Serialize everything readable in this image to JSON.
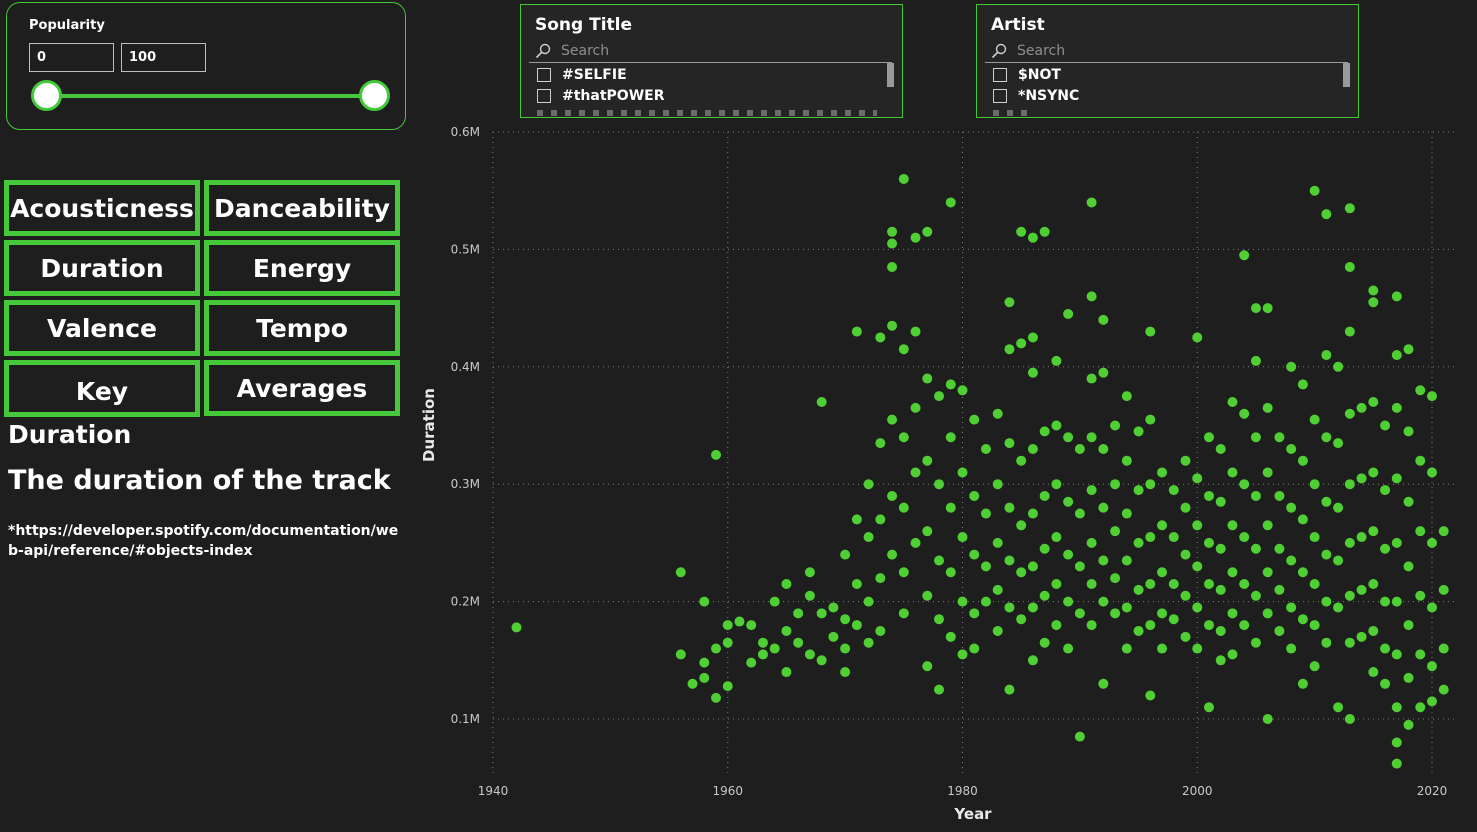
{
  "popularity": {
    "title": "Popularity",
    "min_value": "0",
    "max_value": "100"
  },
  "song_title_slicer": {
    "title": "Song Title",
    "search_placeholder": "Search",
    "items": [
      "#SELFIE",
      "#thatPOWER"
    ]
  },
  "artist_slicer": {
    "title": "Artist",
    "search_placeholder": "Search",
    "items": [
      "$NOT",
      "*NSYNC"
    ]
  },
  "metric_buttons": [
    "Acousticness",
    "Danceability",
    "Duration",
    "Energy",
    "Valence",
    "Tempo",
    "Key",
    "Averages"
  ],
  "description": {
    "title": "Duration",
    "text": "The duration of the track",
    "source": "*https://developer.spotify.com/documentation/web-api/reference/#objects-index"
  },
  "colors": {
    "accent": "#45c83a",
    "point": "#4fcf33",
    "background": "#1e1e1e"
  },
  "icons": {
    "search": "search-icon",
    "checkbox": "checkbox-icon"
  },
  "chart_data": {
    "type": "scatter",
    "xlabel": "Year",
    "ylabel": "Duration",
    "xlim": [
      1940,
      2021
    ],
    "ylim": [
      50000,
      600000
    ],
    "x_ticks": [
      1940,
      1960,
      1980,
      2000,
      2020
    ],
    "x_tick_labels": [
      "1940",
      "1960",
      "1980",
      "2000",
      "2020"
    ],
    "y_ticks": [
      100000,
      200000,
      300000,
      400000,
      500000,
      600000
    ],
    "y_tick_labels": [
      "0.1M",
      "0.2M",
      "0.3M",
      "0.4M",
      "0.5M",
      "0.6M"
    ],
    "grid": true,
    "points": [
      [
        1942,
        178000
      ],
      [
        1956,
        225000
      ],
      [
        1956,
        155000
      ],
      [
        1957,
        130000
      ],
      [
        1958,
        200000
      ],
      [
        1958,
        148000
      ],
      [
        1958,
        135000
      ],
      [
        1959,
        325000
      ],
      [
        1959,
        118000
      ],
      [
        1959,
        160000
      ],
      [
        1960,
        180000
      ],
      [
        1960,
        165000
      ],
      [
        1960,
        128000
      ],
      [
        1961,
        183000
      ],
      [
        1962,
        180000
      ],
      [
        1962,
        148000
      ],
      [
        1963,
        155000
      ],
      [
        1963,
        165000
      ],
      [
        1964,
        200000
      ],
      [
        1964,
        160000
      ],
      [
        1965,
        215000
      ],
      [
        1965,
        175000
      ],
      [
        1965,
        140000
      ],
      [
        1966,
        190000
      ],
      [
        1966,
        165000
      ],
      [
        1967,
        205000
      ],
      [
        1967,
        155000
      ],
      [
        1967,
        225000
      ],
      [
        1968,
        370000
      ],
      [
        1968,
        190000
      ],
      [
        1968,
        150000
      ],
      [
        1969,
        195000
      ],
      [
        1969,
        170000
      ],
      [
        1970,
        240000
      ],
      [
        1970,
        185000
      ],
      [
        1970,
        160000
      ],
      [
        1970,
        140000
      ],
      [
        1971,
        430000
      ],
      [
        1971,
        270000
      ],
      [
        1971,
        215000
      ],
      [
        1971,
        180000
      ],
      [
        1972,
        300000
      ],
      [
        1972,
        255000
      ],
      [
        1972,
        200000
      ],
      [
        1972,
        165000
      ],
      [
        1973,
        425000
      ],
      [
        1973,
        335000
      ],
      [
        1973,
        270000
      ],
      [
        1973,
        220000
      ],
      [
        1973,
        175000
      ],
      [
        1974,
        515000
      ],
      [
        1974,
        505000
      ],
      [
        1974,
        485000
      ],
      [
        1974,
        435000
      ],
      [
        1974,
        355000
      ],
      [
        1974,
        290000
      ],
      [
        1974,
        240000
      ],
      [
        1975,
        560000
      ],
      [
        1975,
        415000
      ],
      [
        1975,
        340000
      ],
      [
        1975,
        280000
      ],
      [
        1975,
        225000
      ],
      [
        1975,
        190000
      ],
      [
        1976,
        510000
      ],
      [
        1976,
        430000
      ],
      [
        1976,
        365000
      ],
      [
        1976,
        310000
      ],
      [
        1976,
        250000
      ],
      [
        1977,
        515000
      ],
      [
        1977,
        390000
      ],
      [
        1977,
        320000
      ],
      [
        1977,
        260000
      ],
      [
        1977,
        205000
      ],
      [
        1977,
        145000
      ],
      [
        1978,
        375000
      ],
      [
        1978,
        300000
      ],
      [
        1978,
        235000
      ],
      [
        1978,
        185000
      ],
      [
        1978,
        125000
      ],
      [
        1979,
        540000
      ],
      [
        1979,
        385000
      ],
      [
        1979,
        340000
      ],
      [
        1979,
        280000
      ],
      [
        1979,
        225000
      ],
      [
        1979,
        170000
      ],
      [
        1980,
        380000
      ],
      [
        1980,
        310000
      ],
      [
        1980,
        255000
      ],
      [
        1980,
        200000
      ],
      [
        1980,
        155000
      ],
      [
        1981,
        355000
      ],
      [
        1981,
        290000
      ],
      [
        1981,
        240000
      ],
      [
        1981,
        190000
      ],
      [
        1981,
        160000
      ],
      [
        1982,
        330000
      ],
      [
        1982,
        275000
      ],
      [
        1982,
        230000
      ],
      [
        1982,
        200000
      ],
      [
        1983,
        360000
      ],
      [
        1983,
        300000
      ],
      [
        1983,
        250000
      ],
      [
        1983,
        210000
      ],
      [
        1983,
        175000
      ],
      [
        1984,
        455000
      ],
      [
        1984,
        415000
      ],
      [
        1984,
        335000
      ],
      [
        1984,
        280000
      ],
      [
        1984,
        235000
      ],
      [
        1984,
        195000
      ],
      [
        1984,
        125000
      ],
      [
        1985,
        515000
      ],
      [
        1985,
        420000
      ],
      [
        1985,
        320000
      ],
      [
        1985,
        265000
      ],
      [
        1985,
        225000
      ],
      [
        1985,
        185000
      ],
      [
        1986,
        510000
      ],
      [
        1986,
        425000
      ],
      [
        1986,
        395000
      ],
      [
        1986,
        330000
      ],
      [
        1986,
        275000
      ],
      [
        1986,
        230000
      ],
      [
        1986,
        195000
      ],
      [
        1986,
        150000
      ],
      [
        1987,
        515000
      ],
      [
        1987,
        345000
      ],
      [
        1987,
        290000
      ],
      [
        1987,
        245000
      ],
      [
        1987,
        205000
      ],
      [
        1987,
        165000
      ],
      [
        1988,
        405000
      ],
      [
        1988,
        350000
      ],
      [
        1988,
        300000
      ],
      [
        1988,
        255000
      ],
      [
        1988,
        215000
      ],
      [
        1988,
        180000
      ],
      [
        1989,
        445000
      ],
      [
        1989,
        340000
      ],
      [
        1989,
        285000
      ],
      [
        1989,
        240000
      ],
      [
        1989,
        200000
      ],
      [
        1989,
        160000
      ],
      [
        1990,
        330000
      ],
      [
        1990,
        275000
      ],
      [
        1990,
        230000
      ],
      [
        1990,
        190000
      ],
      [
        1990,
        85000
      ],
      [
        1991,
        540000
      ],
      [
        1991,
        460000
      ],
      [
        1991,
        390000
      ],
      [
        1991,
        340000
      ],
      [
        1991,
        295000
      ],
      [
        1991,
        250000
      ],
      [
        1991,
        215000
      ],
      [
        1991,
        180000
      ],
      [
        1992,
        440000
      ],
      [
        1992,
        395000
      ],
      [
        1992,
        330000
      ],
      [
        1992,
        280000
      ],
      [
        1992,
        235000
      ],
      [
        1992,
        200000
      ],
      [
        1992,
        130000
      ],
      [
        1993,
        350000
      ],
      [
        1993,
        300000
      ],
      [
        1993,
        260000
      ],
      [
        1993,
        220000
      ],
      [
        1993,
        190000
      ],
      [
        1994,
        375000
      ],
      [
        1994,
        320000
      ],
      [
        1994,
        275000
      ],
      [
        1994,
        235000
      ],
      [
        1994,
        195000
      ],
      [
        1994,
        160000
      ],
      [
        1995,
        345000
      ],
      [
        1995,
        295000
      ],
      [
        1995,
        250000
      ],
      [
        1995,
        210000
      ],
      [
        1995,
        175000
      ],
      [
        1996,
        430000
      ],
      [
        1996,
        355000
      ],
      [
        1996,
        300000
      ],
      [
        1996,
        255000
      ],
      [
        1996,
        215000
      ],
      [
        1996,
        180000
      ],
      [
        1996,
        120000
      ],
      [
        1997,
        310000
      ],
      [
        1997,
        265000
      ],
      [
        1997,
        225000
      ],
      [
        1997,
        190000
      ],
      [
        1997,
        160000
      ],
      [
        1998,
        295000
      ],
      [
        1998,
        255000
      ],
      [
        1998,
        215000
      ],
      [
        1998,
        185000
      ],
      [
        1999,
        320000
      ],
      [
        1999,
        280000
      ],
      [
        1999,
        240000
      ],
      [
        1999,
        205000
      ],
      [
        1999,
        170000
      ],
      [
        2000,
        425000
      ],
      [
        2000,
        305000
      ],
      [
        2000,
        265000
      ],
      [
        2000,
        230000
      ],
      [
        2000,
        195000
      ],
      [
        2000,
        160000
      ],
      [
        2001,
        340000
      ],
      [
        2001,
        290000
      ],
      [
        2001,
        250000
      ],
      [
        2001,
        215000
      ],
      [
        2001,
        180000
      ],
      [
        2001,
        110000
      ],
      [
        2002,
        330000
      ],
      [
        2002,
        285000
      ],
      [
        2002,
        245000
      ],
      [
        2002,
        210000
      ],
      [
        2002,
        175000
      ],
      [
        2002,
        150000
      ],
      [
        2003,
        370000
      ],
      [
        2003,
        310000
      ],
      [
        2003,
        265000
      ],
      [
        2003,
        225000
      ],
      [
        2003,
        190000
      ],
      [
        2003,
        155000
      ],
      [
        2004,
        495000
      ],
      [
        2004,
        360000
      ],
      [
        2004,
        300000
      ],
      [
        2004,
        255000
      ],
      [
        2004,
        215000
      ],
      [
        2004,
        180000
      ],
      [
        2005,
        450000
      ],
      [
        2005,
        405000
      ],
      [
        2005,
        340000
      ],
      [
        2005,
        290000
      ],
      [
        2005,
        245000
      ],
      [
        2005,
        205000
      ],
      [
        2005,
        165000
      ],
      [
        2006,
        450000
      ],
      [
        2006,
        365000
      ],
      [
        2006,
        310000
      ],
      [
        2006,
        265000
      ],
      [
        2006,
        225000
      ],
      [
        2006,
        190000
      ],
      [
        2006,
        100000
      ],
      [
        2007,
        340000
      ],
      [
        2007,
        290000
      ],
      [
        2007,
        245000
      ],
      [
        2007,
        210000
      ],
      [
        2007,
        175000
      ],
      [
        2008,
        400000
      ],
      [
        2008,
        330000
      ],
      [
        2008,
        280000
      ],
      [
        2008,
        235000
      ],
      [
        2008,
        195000
      ],
      [
        2008,
        160000
      ],
      [
        2009,
        385000
      ],
      [
        2009,
        320000
      ],
      [
        2009,
        270000
      ],
      [
        2009,
        225000
      ],
      [
        2009,
        185000
      ],
      [
        2009,
        130000
      ],
      [
        2010,
        550000
      ],
      [
        2010,
        355000
      ],
      [
        2010,
        300000
      ],
      [
        2010,
        255000
      ],
      [
        2010,
        215000
      ],
      [
        2010,
        180000
      ],
      [
        2010,
        145000
      ],
      [
        2011,
        530000
      ],
      [
        2011,
        410000
      ],
      [
        2011,
        340000
      ],
      [
        2011,
        285000
      ],
      [
        2011,
        240000
      ],
      [
        2011,
        200000
      ],
      [
        2011,
        165000
      ],
      [
        2012,
        400000
      ],
      [
        2012,
        335000
      ],
      [
        2012,
        280000
      ],
      [
        2012,
        235000
      ],
      [
        2012,
        195000
      ],
      [
        2012,
        110000
      ],
      [
        2013,
        535000
      ],
      [
        2013,
        485000
      ],
      [
        2013,
        430000
      ],
      [
        2013,
        360000
      ],
      [
        2013,
        300000
      ],
      [
        2013,
        250000
      ],
      [
        2013,
        205000
      ],
      [
        2013,
        165000
      ],
      [
        2013,
        100000
      ],
      [
        2014,
        365000
      ],
      [
        2014,
        305000
      ],
      [
        2014,
        255000
      ],
      [
        2014,
        210000
      ],
      [
        2014,
        170000
      ],
      [
        2015,
        465000
      ],
      [
        2015,
        455000
      ],
      [
        2015,
        370000
      ],
      [
        2015,
        310000
      ],
      [
        2015,
        260000
      ],
      [
        2015,
        215000
      ],
      [
        2015,
        175000
      ],
      [
        2015,
        140000
      ],
      [
        2016,
        350000
      ],
      [
        2016,
        295000
      ],
      [
        2016,
        245000
      ],
      [
        2016,
        200000
      ],
      [
        2016,
        160000
      ],
      [
        2016,
        130000
      ],
      [
        2017,
        460000
      ],
      [
        2017,
        410000
      ],
      [
        2017,
        365000
      ],
      [
        2017,
        305000
      ],
      [
        2017,
        250000
      ],
      [
        2017,
        200000
      ],
      [
        2017,
        155000
      ],
      [
        2017,
        110000
      ],
      [
        2017,
        80000
      ],
      [
        2017,
        62000
      ],
      [
        2018,
        415000
      ],
      [
        2018,
        345000
      ],
      [
        2018,
        285000
      ],
      [
        2018,
        230000
      ],
      [
        2018,
        180000
      ],
      [
        2018,
        135000
      ],
      [
        2018,
        95000
      ],
      [
        2019,
        380000
      ],
      [
        2019,
        320000
      ],
      [
        2019,
        260000
      ],
      [
        2019,
        205000
      ],
      [
        2019,
        155000
      ],
      [
        2019,
        110000
      ],
      [
        2020,
        375000
      ],
      [
        2020,
        310000
      ],
      [
        2020,
        250000
      ],
      [
        2020,
        195000
      ],
      [
        2020,
        145000
      ],
      [
        2020,
        115000
      ],
      [
        2021,
        260000
      ],
      [
        2021,
        210000
      ],
      [
        2021,
        160000
      ],
      [
        2021,
        125000
      ]
    ]
  }
}
